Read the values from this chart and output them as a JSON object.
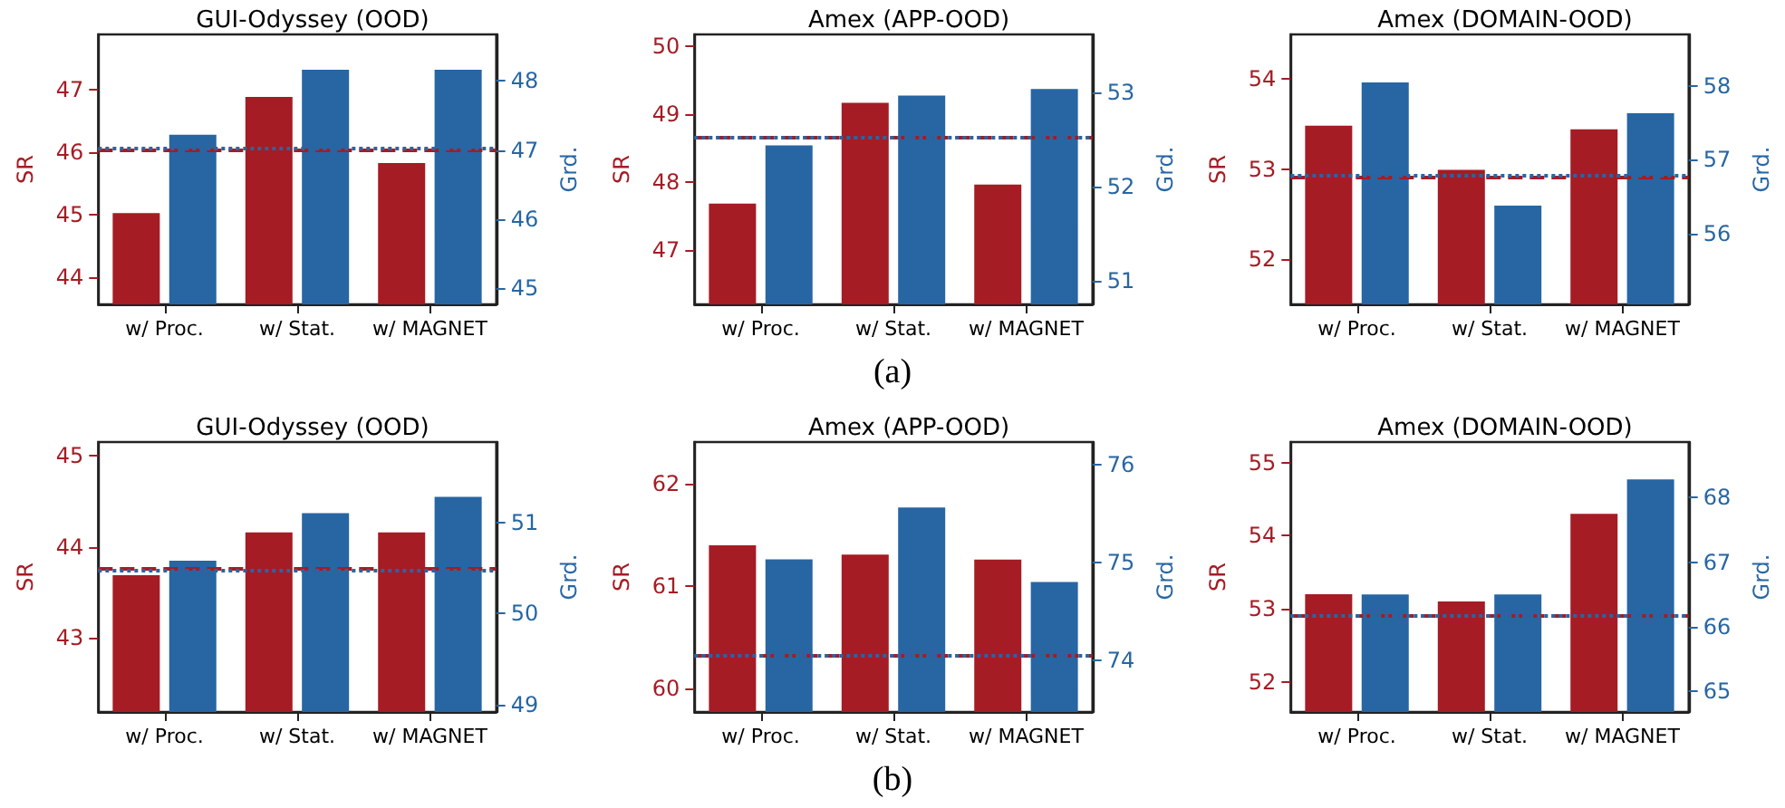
{
  "chart_data": [
    {
      "type": "bar",
      "title": "GUI-Odyssey (OOD)",
      "annotations": [
        "(a)"
      ],
      "categories": [
        "w/ Proc.",
        "w/ Stat.",
        "w/ MAGNET"
      ],
      "ylabel": "SR",
      "y2label": "Grd.",
      "grid": false,
      "series": [
        {
          "color": "#a51c24",
          "values": [
            45.03,
            46.89,
            45.83
          ]
        },
        {
          "color": "#2766a3",
          "values": [
            47.22,
            48.16,
            48.16
          ],
          "axis": "y2"
        }
      ],
      "ylim": [
        43.57,
        47.89
      ],
      "yticks": [
        44,
        45,
        46,
        47
      ],
      "y2lim": [
        44.77,
        48.67
      ],
      "y2ticks": [
        45,
        46,
        47,
        48
      ],
      "ref_lines": [
        {
          "axis": "y",
          "value": 46.05,
          "color": "#a51c24",
          "line_style": "dashed"
        },
        {
          "axis": "y2",
          "value": 47.02,
          "color": "#2766a3",
          "line_style": "dotted"
        }
      ]
    },
    {
      "type": "bar",
      "title": "Amex (APP-OOD)",
      "categories": [
        "w/ Proc.",
        "w/ Stat.",
        "w/ MAGNET"
      ],
      "ylabel": "SR",
      "y2label": "Grd.",
      "grid": false,
      "series": [
        {
          "color": "#a51c24",
          "values": [
            47.68,
            49.17,
            47.96
          ]
        },
        {
          "color": "#2766a3",
          "values": [
            52.44,
            52.97,
            53.04
          ],
          "axis": "y2"
        }
      ],
      "ylim": [
        46.19,
        50.18
      ],
      "yticks": [
        47,
        48,
        49,
        50
      ],
      "y2lim": [
        50.75,
        53.62
      ],
      "y2ticks": [
        51,
        52,
        53
      ],
      "ref_lines": [
        {
          "axis": "y",
          "value": 48.67,
          "color": "#a51c24",
          "line_style": "dashed"
        },
        {
          "axis": "y2",
          "value": 52.53,
          "color": "#2766a3",
          "line_style": "dotted"
        }
      ]
    },
    {
      "type": "bar",
      "title": "Amex (DOMAIN-OOD)",
      "categories": [
        "w/ Proc.",
        "w/ Stat.",
        "w/ MAGNET"
      ],
      "ylabel": "SR",
      "y2label": "Grd.",
      "grid": false,
      "series": [
        {
          "color": "#a51c24",
          "values": [
            53.48,
            52.99,
            53.44
          ]
        },
        {
          "color": "#2766a3",
          "values": [
            58.05,
            56.38,
            57.63
          ],
          "axis": "y2"
        }
      ],
      "ylim": [
        51.5,
        54.49
      ],
      "yticks": [
        52,
        53,
        54
      ],
      "y2lim": [
        55.04,
        58.7
      ],
      "y2ticks": [
        56,
        57,
        58
      ],
      "ref_lines": [
        {
          "axis": "y",
          "value": 52.91,
          "color": "#a51c24",
          "line_style": "dashed"
        },
        {
          "axis": "y2",
          "value": 56.78,
          "color": "#2766a3",
          "line_style": "dotted"
        }
      ]
    },
    {
      "type": "bar",
      "title": "GUI-Odyssey (OOD)",
      "annotations": [
        "(b)"
      ],
      "categories": [
        "w/ Proc.",
        "w/ Stat.",
        "w/ MAGNET"
      ],
      "ylabel": "SR",
      "y2label": "Grd.",
      "grid": false,
      "series": [
        {
          "color": "#a51c24",
          "values": [
            43.69,
            44.16,
            44.16
          ]
        },
        {
          "color": "#2766a3",
          "values": [
            50.58,
            51.1,
            51.28
          ],
          "axis": "y2"
        }
      ],
      "ylim": [
        42.19,
        45.15
      ],
      "yticks": [
        43,
        44,
        45
      ],
      "y2lim": [
        48.92,
        51.88
      ],
      "y2ticks": [
        49,
        50,
        51
      ],
      "ref_lines": [
        {
          "axis": "y",
          "value": 43.76,
          "color": "#a51c24",
          "line_style": "dashed"
        },
        {
          "axis": "y2",
          "value": 50.48,
          "color": "#2766a3",
          "line_style": "dotted"
        }
      ]
    },
    {
      "type": "bar",
      "title": "Amex (APP-OOD)",
      "categories": [
        "w/ Proc.",
        "w/ Stat.",
        "w/ MAGNET"
      ],
      "ylabel": "SR",
      "y2label": "Grd.",
      "grid": false,
      "series": [
        {
          "color": "#a51c24",
          "values": [
            61.4,
            61.31,
            61.26
          ]
        },
        {
          "color": "#2766a3",
          "values": [
            75.03,
            75.56,
            74.8
          ],
          "axis": "y2"
        }
      ],
      "ylim": [
        59.77,
        62.41
      ],
      "yticks": [
        60,
        61,
        62
      ],
      "y2lim": [
        73.47,
        76.23
      ],
      "y2ticks": [
        74,
        75,
        76
      ],
      "ref_lines": [
        {
          "axis": "y",
          "value": 60.32,
          "color": "#a51c24",
          "line_style": "dashed"
        },
        {
          "axis": "y2",
          "value": 74.05,
          "color": "#2766a3",
          "line_style": "dotted"
        }
      ]
    },
    {
      "type": "bar",
      "title": "Amex (DOMAIN-OOD)",
      "categories": [
        "w/ Proc.",
        "w/ Stat.",
        "w/ MAGNET"
      ],
      "ylabel": "SR",
      "y2label": "Grd.",
      "grid": false,
      "series": [
        {
          "color": "#a51c24",
          "values": [
            53.2,
            53.1,
            54.3
          ]
        },
        {
          "color": "#2766a3",
          "values": [
            66.5,
            66.5,
            68.28
          ],
          "axis": "y2"
        }
      ],
      "ylim": [
        51.59,
        55.28
      ],
      "yticks": [
        52,
        53,
        54,
        55
      ],
      "y2lim": [
        64.68,
        68.86
      ],
      "y2ticks": [
        65,
        66,
        67,
        68
      ],
      "ref_lines": [
        {
          "axis": "y",
          "value": 52.91,
          "color": "#a51c24",
          "line_style": "dashed"
        },
        {
          "axis": "y2",
          "value": 66.17,
          "color": "#2766a3",
          "line_style": "dotted"
        }
      ]
    }
  ]
}
